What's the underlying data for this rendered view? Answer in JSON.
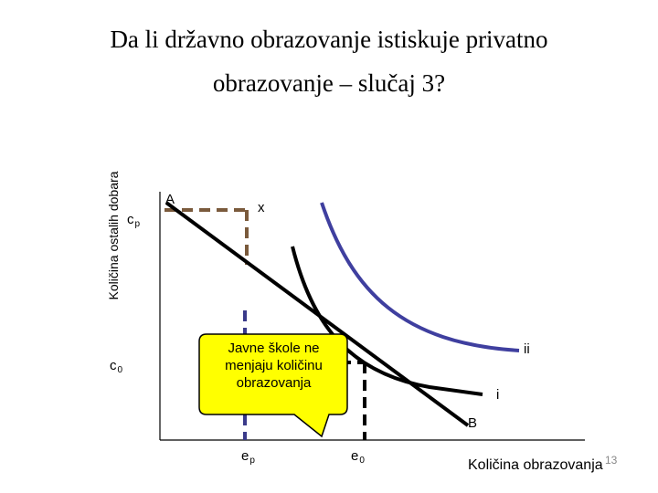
{
  "title": {
    "line1": "Da li državno obrazovanje istiskuje privatno",
    "line2": "obrazovanje – slučaj 3?"
  },
  "axes": {
    "y_label": "Količina ostalih dobara",
    "x_label": "Količina obrazovanja"
  },
  "y_ticks": [
    {
      "base": "c",
      "sub": "p"
    },
    {
      "base": "c",
      "sub": "0"
    }
  ],
  "x_ticks": [
    {
      "base": "e",
      "sub": "p"
    },
    {
      "base": "e",
      "sub": "0"
    }
  ],
  "points": {
    "a": "A",
    "x": "x",
    "b": "B"
  },
  "curves": {
    "ii": "ii",
    "i": "i"
  },
  "callout": "Javne škole ne menjaju količinu obrazovanja",
  "page_number": "13",
  "colors": {
    "budget_line": "#000000",
    "indifference_i": "#000000",
    "indifference_ii": "#3f3f9f",
    "dashed_cp": "#7a5a3c",
    "dashed_ep": "#3a3a8a",
    "callout_fill": "#ffff00"
  }
}
